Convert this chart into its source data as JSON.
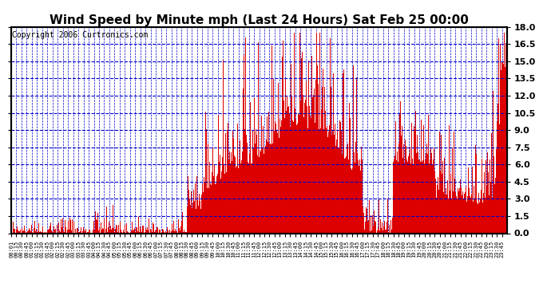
{
  "title": "Wind Speed by Minute mph (Last 24 Hours) Sat Feb 25 00:00",
  "copyright": "Copyright 2006 Curtronics.com",
  "ylim": [
    0.0,
    18.0
  ],
  "yticks": [
    0.0,
    1.5,
    3.0,
    4.5,
    6.0,
    7.5,
    9.0,
    10.5,
    12.0,
    13.5,
    15.0,
    16.5,
    18.0
  ],
  "bar_color": "#dd0000",
  "grid_color": "#0000cc",
  "bg_color": "#ffffff",
  "title_fontsize": 11,
  "copyright_fontsize": 7
}
